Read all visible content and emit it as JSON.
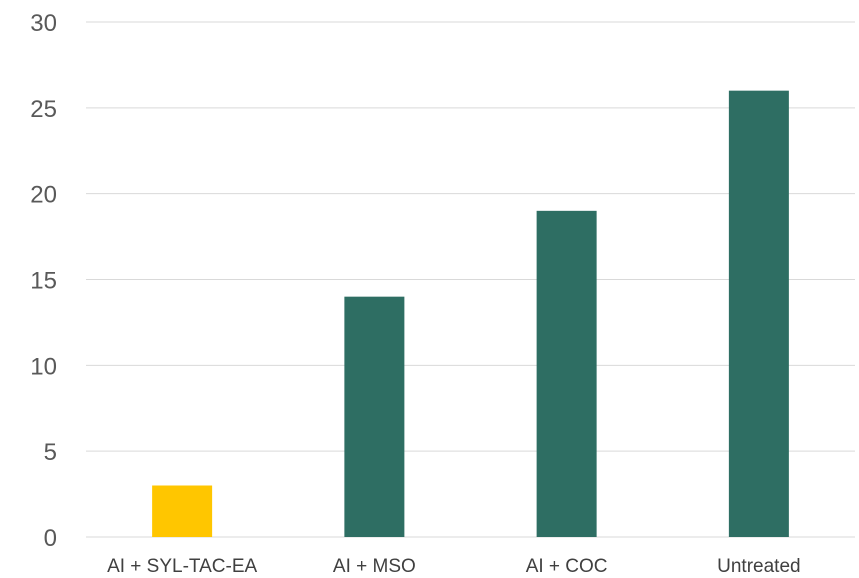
{
  "chart_data": {
    "type": "bar",
    "title": "",
    "xlabel": "",
    "ylabel": "",
    "categories": [
      "AI + SYL-TAC-EA",
      "AI + MSO",
      "AI + COC",
      "Untreated"
    ],
    "values": [
      3,
      14,
      19,
      26
    ],
    "bar_colors": [
      "#FFC600",
      "#2E6E63",
      "#2E6E63",
      "#2E6E63"
    ],
    "ylim": [
      0,
      30
    ],
    "yticks": [
      0,
      5,
      10,
      15,
      20,
      25,
      30
    ],
    "grid": true,
    "legend": "none"
  }
}
